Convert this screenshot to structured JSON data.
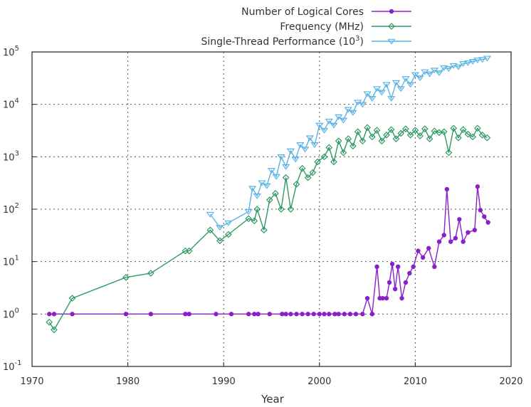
{
  "chart_data": {
    "type": "line",
    "title": "",
    "xlabel": "Year",
    "ylabel": "",
    "xlim": [
      1970,
      2020
    ],
    "ylim": [
      0.1,
      100000
    ],
    "yscale": "log",
    "grid": true,
    "legend_position": "top-right",
    "x_ticks": [
      "1970",
      "1980",
      "1990",
      "2000",
      "2010",
      "2020"
    ],
    "y_ticks": [
      {
        "base": "10",
        "exp": "-1",
        "value": 0.1
      },
      {
        "base": "10",
        "exp": "0",
        "value": 1
      },
      {
        "base": "10",
        "exp": "1",
        "value": 10
      },
      {
        "base": "10",
        "exp": "2",
        "value": 100
      },
      {
        "base": "10",
        "exp": "3",
        "value": 1000
      },
      {
        "base": "10",
        "exp": "4",
        "value": 10000
      },
      {
        "base": "10",
        "exp": "5",
        "value": 100000
      }
    ],
    "series": [
      {
        "name": "Number of Logical Cores",
        "color": "#8a20c8",
        "marker": "dot",
        "x": [
          1971.8,
          1972.3,
          1974.2,
          1979.8,
          1982.4,
          1986,
          1986.4,
          1989.2,
          1990.8,
          1992.6,
          1993.2,
          1993.6,
          1994.8,
          1996.1,
          1996.5,
          1997,
          1997.6,
          1998.2,
          1998.8,
          1999.4,
          2000,
          2000.5,
          2001,
          2001.6,
          2002,
          2002.6,
          2003.2,
          2003.8,
          2004.5,
          2005,
          2005.5,
          2006,
          2006.3,
          2006.6,
          2007,
          2007.3,
          2007.6,
          2007.9,
          2008.2,
          2008.6,
          2009,
          2009.4,
          2009.8,
          2010.3,
          2010.8,
          2011.4,
          2012,
          2012.5,
          2013,
          2013.3,
          2013.7,
          2014.2,
          2014.6,
          2015,
          2015.5,
          2016.2,
          2016.5,
          2016.8,
          2017.2,
          2017.6
        ],
        "values": [
          1,
          1,
          1,
          1,
          1,
          1,
          1,
          1,
          1,
          1,
          1,
          1,
          1,
          1,
          1,
          1,
          1,
          1,
          1,
          1,
          1,
          1,
          1,
          1,
          1,
          1,
          1,
          1,
          1,
          2,
          1,
          8,
          2,
          2,
          2,
          4,
          9,
          3,
          8,
          2,
          4,
          6,
          8,
          16,
          12,
          18,
          8,
          24,
          32,
          240,
          24,
          28,
          64,
          24,
          36,
          40,
          270,
          96,
          72,
          56
        ]
      },
      {
        "name": "Frequency (MHz)",
        "color": "#2e9a63",
        "marker": "diamond",
        "x": [
          1971.8,
          1972.3,
          1974.2,
          1979.8,
          1982.4,
          1986,
          1986.4,
          1988.6,
          1989.6,
          1990.5,
          1992.6,
          1993.2,
          1993.5,
          1994.2,
          1994.8,
          1995.4,
          1996,
          1996.5,
          1997,
          1997.6,
          1998.2,
          1998.8,
          1999.3,
          1999.8,
          2000.5,
          2001,
          2001.5,
          2002,
          2002.5,
          2003,
          2003.5,
          2004,
          2004.5,
          2005,
          2005.5,
          2006,
          2006.5,
          2007,
          2007.5,
          2008,
          2008.5,
          2009,
          2009.5,
          2010,
          2010.5,
          2011,
          2011.5,
          2012,
          2012.5,
          2013,
          2013.5,
          2014,
          2014.5,
          2015,
          2015.5,
          2016,
          2016.5,
          2017,
          2017.5
        ],
        "values": [
          0.7,
          0.5,
          2,
          5,
          6,
          16,
          16,
          40,
          25,
          33,
          66,
          60,
          100,
          40,
          150,
          200,
          100,
          400,
          100,
          300,
          600,
          400,
          500,
          800,
          1000,
          1500,
          800,
          2000,
          1200,
          2200,
          1600,
          3000,
          2000,
          3600,
          2400,
          3200,
          2000,
          2600,
          3300,
          2200,
          2800,
          3400,
          2600,
          3200,
          2500,
          3400,
          2200,
          3100,
          2900,
          3000,
          1200,
          3500,
          2300,
          3300,
          2700,
          2400,
          3500,
          2600,
          2300
        ]
      },
      {
        "name": "Single-Thread Performance (10^3)",
        "color": "#5ab4e4",
        "marker": "triangle-down",
        "x": [
          1988.6,
          1989.6,
          1990.5,
          1992.6,
          1993,
          1993.5,
          1994,
          1994.5,
          1995,
          1995.5,
          1996,
          1996.5,
          1997,
          1997.5,
          1998,
          1998.5,
          1999,
          1999.5,
          2000,
          2000.5,
          2001,
          2001.5,
          2002,
          2002.5,
          2003,
          2003.5,
          2004,
          2004.5,
          2005,
          2005.5,
          2006,
          2006.5,
          2007,
          2007.5,
          2008,
          2008.5,
          2009,
          2009.5,
          2010,
          2010.5,
          2011,
          2011.5,
          2012,
          2012.5,
          2013,
          2013.5,
          2014,
          2014.5,
          2015,
          2015.5,
          2016,
          2016.5,
          2017,
          2017.5
        ],
        "values": [
          80,
          45,
          55,
          90,
          250,
          180,
          320,
          280,
          550,
          420,
          1000,
          650,
          1300,
          900,
          1700,
          1400,
          2300,
          1700,
          4000,
          3200,
          4800,
          4000,
          5800,
          5000,
          8000,
          7000,
          11000,
          10000,
          16000,
          13000,
          20000,
          17000,
          24000,
          13000,
          26000,
          20000,
          31000,
          24000,
          37000,
          32000,
          42000,
          38000,
          45000,
          40000,
          50000,
          48000,
          55000,
          52000,
          60000,
          62000,
          66000,
          70000,
          72000,
          76000
        ]
      }
    ]
  }
}
